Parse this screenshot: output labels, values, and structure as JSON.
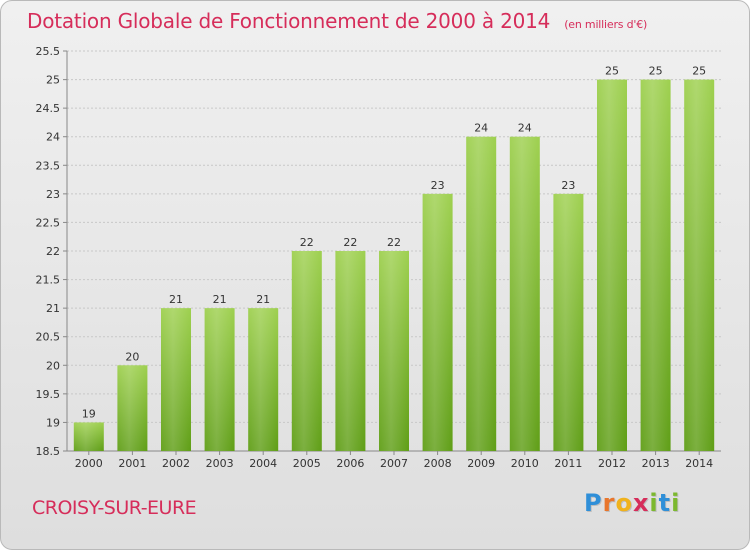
{
  "header": {
    "title": "Dotation Globale de Fonctionnement de 2000 à 2014",
    "unit": "(en milliers d'€)"
  },
  "footer": {
    "town": "CROISY-SUR-EURE",
    "logo": "Proxiti",
    "logo_letters": [
      {
        "ch": "P",
        "color": "#2f8fd8"
      },
      {
        "ch": "r",
        "color": "#e8762c"
      },
      {
        "ch": "o",
        "color": "#f0b21c"
      },
      {
        "ch": "x",
        "color": "#d62d5a"
      },
      {
        "ch": "i",
        "color": "#7cb82f"
      },
      {
        "ch": "t",
        "color": "#2f8fd8"
      },
      {
        "ch": "i",
        "color": "#7cb82f"
      }
    ]
  },
  "chart_data": {
    "type": "bar",
    "title": "Dotation Globale de Fonctionnement de 2000 à 2014",
    "subtitle": "(en milliers d'€)",
    "xlabel": "",
    "ylabel": "",
    "ylim": [
      18.5,
      25.5
    ],
    "yticks": [
      "18.5",
      "19",
      "19.5",
      "20",
      "20.5",
      "21",
      "21.5",
      "22",
      "22.5",
      "23",
      "23.5",
      "24",
      "24.5",
      "25",
      "25.5"
    ],
    "grid": true,
    "bar_color": "#7cb82f",
    "categories": [
      "2000",
      "2001",
      "2002",
      "2003",
      "2004",
      "2005",
      "2006",
      "2007",
      "2008",
      "2009",
      "2010",
      "2011",
      "2012",
      "2013",
      "2014"
    ],
    "values": [
      19,
      20,
      21,
      21,
      21,
      22,
      22,
      22,
      23,
      24,
      24,
      23,
      25,
      25,
      25
    ],
    "labels": [
      "19",
      "20",
      "21",
      "21",
      "21",
      "22",
      "22",
      "22",
      "23",
      "24",
      "24",
      "23",
      "25",
      "25",
      "25"
    ]
  }
}
